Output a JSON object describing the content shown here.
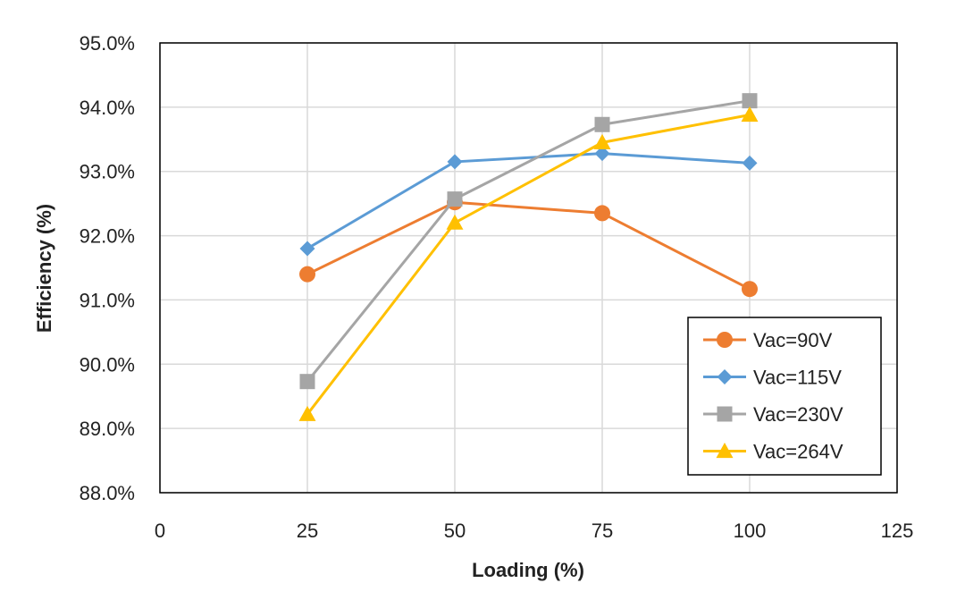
{
  "chart_data": {
    "type": "line",
    "xlabel": "Loading (%)",
    "ylabel": "Efficiency (%)",
    "xlim": [
      0,
      125
    ],
    "ylim": [
      88.0,
      95.0
    ],
    "x_ticks": [
      0,
      25,
      50,
      75,
      100,
      125
    ],
    "y_ticks": [
      88.0,
      89.0,
      90.0,
      91.0,
      92.0,
      93.0,
      94.0,
      95.0
    ],
    "y_tick_labels": [
      "88.0%",
      "89.0%",
      "90.0%",
      "91.0%",
      "92.0%",
      "93.0%",
      "94.0%",
      "95.0%"
    ],
    "grid": true,
    "legend_position": "bottom-right",
    "x": [
      25,
      50,
      75,
      100
    ],
    "series": [
      {
        "name": "Vac=90V",
        "values": [
          91.4,
          92.52,
          92.35,
          91.17
        ],
        "color": "#ED7D31",
        "marker": "circle"
      },
      {
        "name": "Vac=115V",
        "values": [
          91.8,
          93.15,
          93.28,
          93.13
        ],
        "color": "#5B9BD5",
        "marker": "diamond"
      },
      {
        "name": "Vac=230V",
        "values": [
          89.73,
          92.57,
          93.73,
          94.1
        ],
        "color": "#A5A5A5",
        "marker": "square"
      },
      {
        "name": "Vac=264V",
        "values": [
          89.22,
          92.2,
          93.45,
          93.88
        ],
        "color": "#FFC000",
        "marker": "triangle"
      }
    ]
  }
}
